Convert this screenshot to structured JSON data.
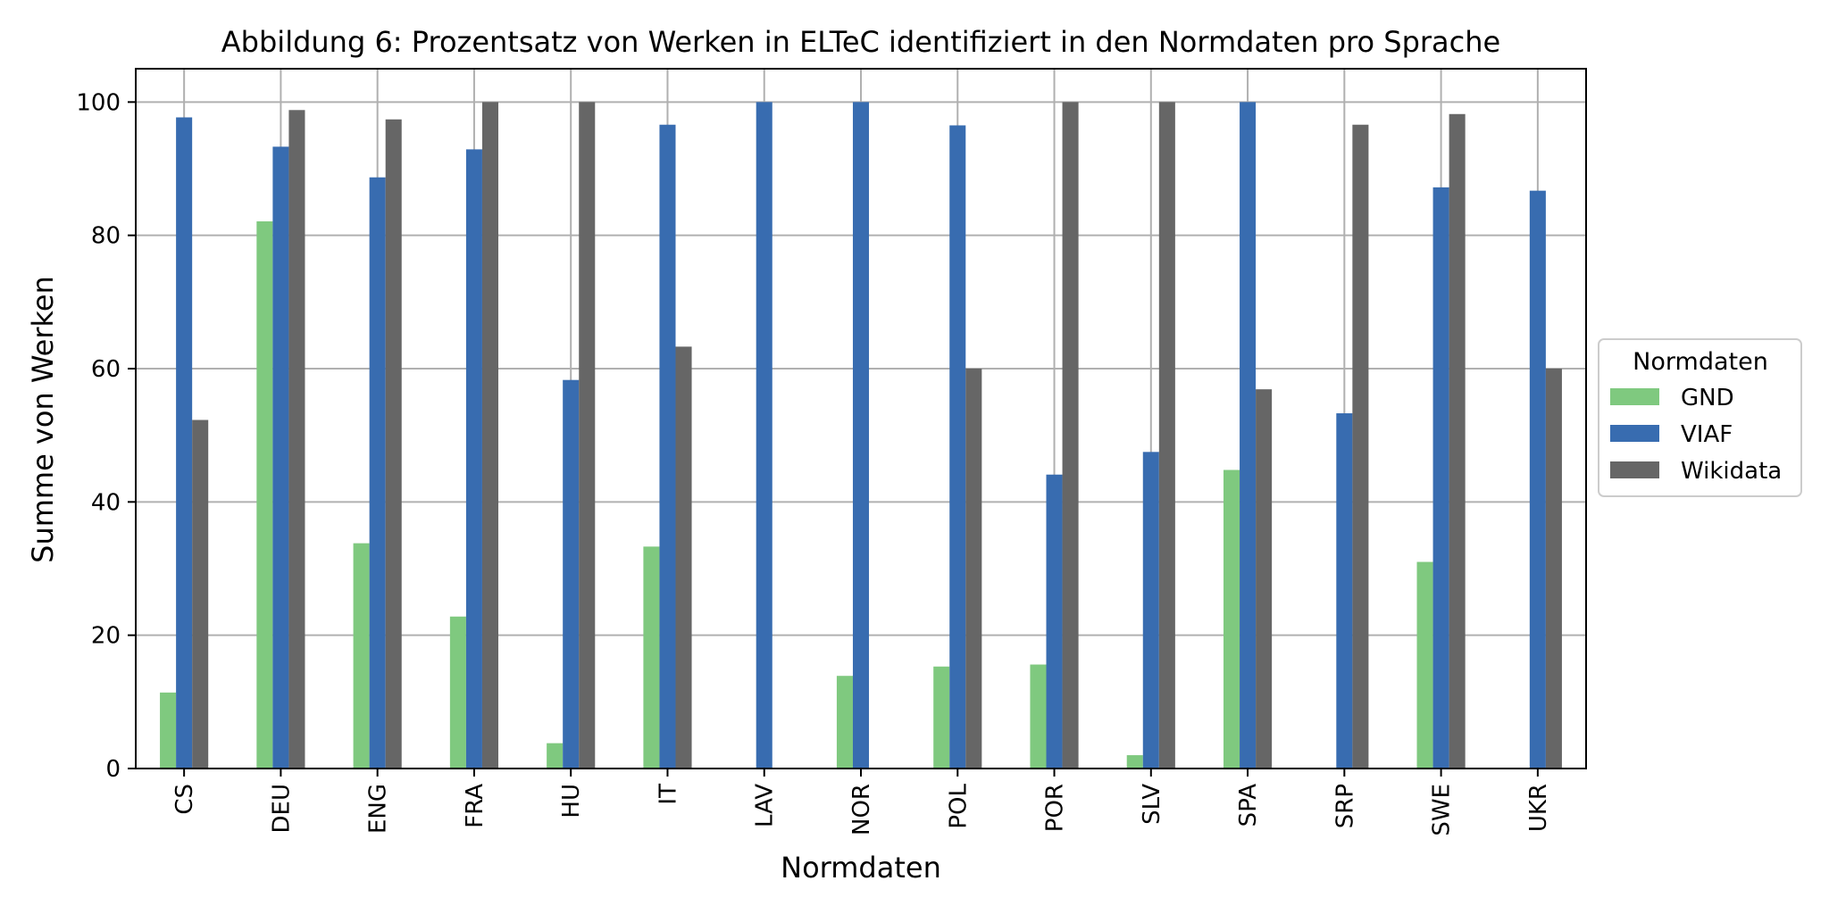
{
  "chart_data": {
    "type": "bar",
    "title": "Abbildung 6: Prozentsatz von Werken in ELTeC identifiziert in den Normdaten pro Sprache",
    "xlabel": "Normdaten",
    "ylabel": "Summe von Werken",
    "categories": [
      "CS",
      "DEU",
      "ENG",
      "FRA",
      "HU",
      "IT",
      "LAV",
      "NOR",
      "POL",
      "POR",
      "SLV",
      "SPA",
      "SRP",
      "SWE",
      "UKR"
    ],
    "series": [
      {
        "name": "GND",
        "color": "#7fc97f",
        "values": [
          11.4,
          82.1,
          33.8,
          22.8,
          3.8,
          33.3,
          0,
          13.9,
          15.3,
          15.6,
          2.0,
          44.8,
          0,
          31.0,
          0
        ]
      },
      {
        "name": "VIAF",
        "color": "#386cb0",
        "values": [
          97.7,
          93.3,
          88.7,
          92.9,
          58.3,
          96.6,
          100,
          100,
          96.5,
          44.1,
          47.5,
          100,
          53.3,
          87.2,
          86.7
        ]
      },
      {
        "name": "Wikidata",
        "color": "#666666",
        "values": [
          52.3,
          98.8,
          97.4,
          100,
          100,
          63.3,
          0,
          0,
          60.0,
          100,
          100,
          56.9,
          96.6,
          98.2,
          60.0
        ]
      }
    ],
    "ylim": [
      0,
      105
    ],
    "yticks": [
      0,
      20,
      40,
      60,
      80,
      100
    ],
    "grid": true,
    "legend": {
      "title": "Normdaten",
      "placement": "outside-right"
    }
  }
}
